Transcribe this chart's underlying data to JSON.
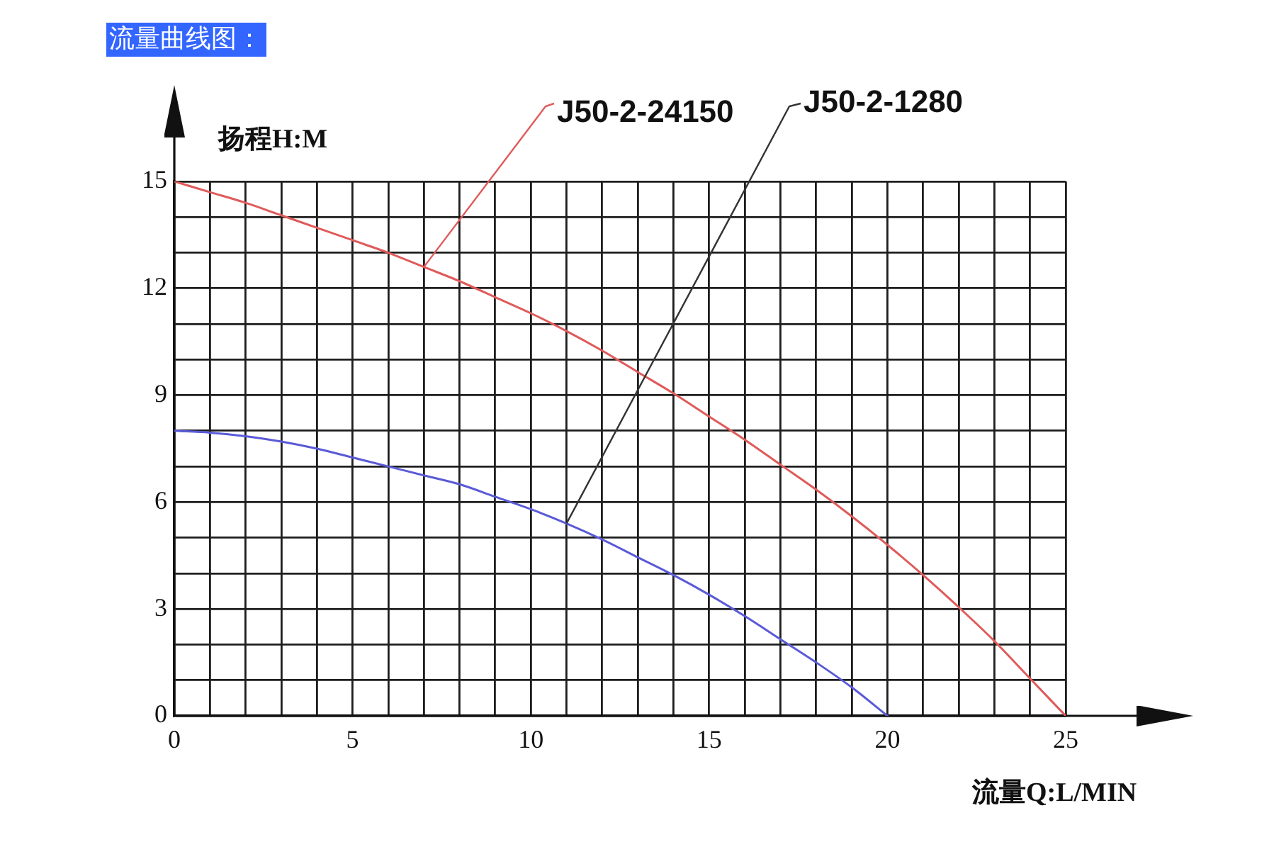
{
  "chart_data": {
    "type": "line",
    "title": "流量曲线图：",
    "xlabel": "流量Q:L/MIN",
    "ylabel": "扬程H:M",
    "xlim": [
      0,
      25
    ],
    "ylim": [
      0,
      15
    ],
    "xticks": [
      0,
      {
        "value": 1,
        "label": null
      },
      {
        "value": 2,
        "label": null
      },
      {
        "value": 3,
        "label": null
      },
      {
        "value": 4,
        "label": null
      },
      5,
      {
        "value": 6,
        "label": null
      },
      {
        "value": 7,
        "label": null
      },
      {
        "value": 8,
        "label": null
      },
      {
        "value": 9,
        "label": null
      },
      10,
      {
        "value": 11,
        "label": null
      },
      {
        "value": 12,
        "label": null
      },
      {
        "value": 13,
        "label": null
      },
      {
        "value": 14,
        "label": null
      },
      15,
      {
        "value": 16,
        "label": null
      },
      {
        "value": 17,
        "label": null
      },
      {
        "value": 18,
        "label": null
      },
      {
        "value": 19,
        "label": null
      },
      20,
      {
        "value": 21,
        "label": null
      },
      {
        "value": 22,
        "label": null
      },
      {
        "value": 23,
        "label": null
      },
      {
        "value": 24,
        "label": null
      },
      25
    ],
    "yticks": [
      0,
      {
        "value": 1,
        "label": null
      },
      {
        "value": 2,
        "label": null
      },
      3,
      {
        "value": 4,
        "label": null
      },
      {
        "value": 5,
        "label": null
      },
      6,
      {
        "value": 7,
        "label": null
      },
      {
        "value": 8,
        "label": null
      },
      9,
      {
        "value": 10,
        "label": null
      },
      {
        "value": 11,
        "label": null
      },
      12,
      {
        "value": 13,
        "label": null
      },
      {
        "value": 14,
        "label": null
      },
      15
    ],
    "grid": true,
    "marker": "none",
    "line_style": "solid",
    "series": [
      {
        "name": "J50-2-24150",
        "color": "#e05a5a",
        "x": [
          0,
          1,
          2,
          3,
          4,
          5,
          6,
          7,
          8,
          9,
          10,
          11,
          12,
          13,
          14,
          15,
          16,
          17,
          18,
          19,
          20,
          21,
          22,
          23,
          24,
          25
        ],
        "values": [
          15,
          14.7,
          14.4,
          14.05,
          13.7,
          13.35,
          13.0,
          12.6,
          12.2,
          11.75,
          11.3,
          10.8,
          10.25,
          9.65,
          9.05,
          8.4,
          7.75,
          7.05,
          6.35,
          5.6,
          4.8,
          3.95,
          3.05,
          2.1,
          1.05,
          0
        ]
      },
      {
        "name": "J50-2-1280",
        "color": "#5a5ad8",
        "x": [
          0,
          1,
          2,
          3,
          4,
          5,
          6,
          7,
          8,
          9,
          10,
          11,
          12,
          13,
          14,
          15,
          16,
          17,
          18,
          19,
          20
        ],
        "values": [
          8.0,
          7.95,
          7.85,
          7.7,
          7.5,
          7.25,
          7.0,
          6.75,
          6.5,
          6.15,
          5.8,
          5.4,
          4.95,
          4.45,
          3.95,
          3.4,
          2.8,
          2.15,
          1.5,
          0.8,
          0
        ]
      }
    ]
  }
}
